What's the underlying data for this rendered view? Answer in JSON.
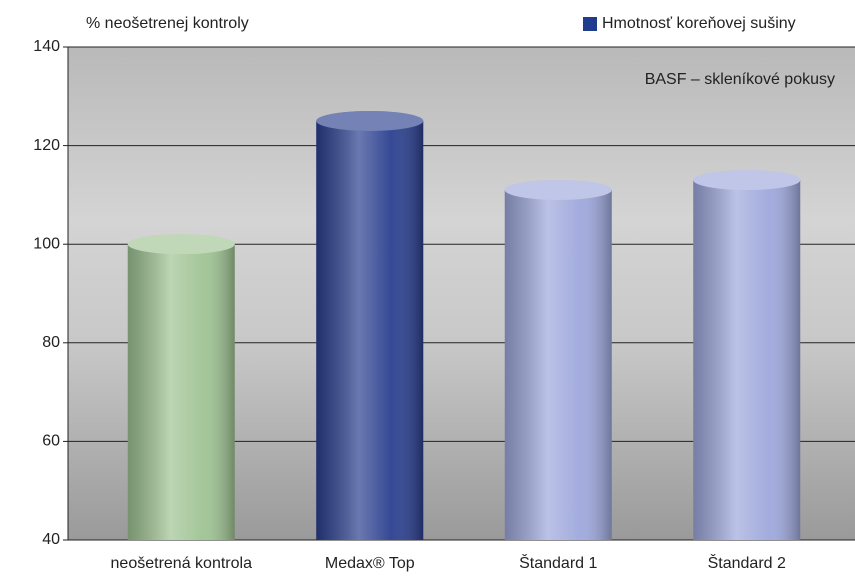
{
  "chart_data": {
    "type": "bar",
    "y_label": "% neošetrenej kontroly",
    "annotation": "BASF – skleníkové pokusy",
    "categories": [
      "neošetrená kontrola",
      "Medax® Top",
      "Štandard 1",
      "Štandard 2"
    ],
    "series": [
      {
        "name": "Hmotnosť koreňovej sušiny",
        "color": "#1f3c8f",
        "values": [
          100,
          125,
          111,
          113
        ],
        "bar_colors": [
          "#9fc393",
          "#2b3f8f",
          "#9ea8dc",
          "#9ea8dc"
        ]
      }
    ],
    "ylim": [
      40,
      140
    ],
    "yticks": [
      40,
      60,
      80,
      100,
      120,
      140
    ],
    "grid": true,
    "legend": "top-right"
  }
}
